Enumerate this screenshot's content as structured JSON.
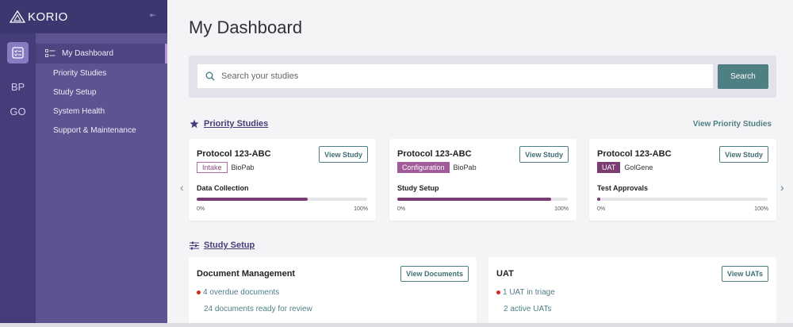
{
  "app": {
    "brand": "KORIO",
    "collapse_glyph": "⇤"
  },
  "rail": {
    "items": [
      "BP",
      "GO"
    ]
  },
  "sidebar": {
    "items": [
      {
        "label": "My Dashboard",
        "active": true
      },
      {
        "label": "Priority Studies"
      },
      {
        "label": "Study Setup"
      },
      {
        "label": "System Health"
      },
      {
        "label": "Support & Maintenance"
      }
    ]
  },
  "page": {
    "title": "My Dashboard"
  },
  "search": {
    "placeholder": "Search your studies",
    "button_label": "Search"
  },
  "priority": {
    "title": "Priority Studies",
    "view_all_label": "View Priority Studies",
    "cards": [
      {
        "protocol": "Protocol 123-ABC",
        "button": "View Study",
        "tag": "Intake",
        "org": "BioPab",
        "phase": "Data Collection",
        "progress": 0.65,
        "min_label": "0%",
        "max_label": "100%"
      },
      {
        "protocol": "Protocol 123-ABC",
        "button": "View Study",
        "tag": "Configuration",
        "org": "BioPab",
        "phase": "Study Setup",
        "progress": 0.9,
        "min_label": "0%",
        "max_label": "100%"
      },
      {
        "protocol": "Protocol 123-ABC",
        "button": "View Study",
        "tag": "UAT",
        "org": "GolGene",
        "phase": "Test Approvals",
        "progress": 0.01,
        "min_label": "0%",
        "max_label": "100%"
      }
    ]
  },
  "setup": {
    "title": "Study Setup",
    "panels": [
      {
        "title": "Document Management",
        "button": "View Documents",
        "alert": "4 overdue documents",
        "info": "24 documents ready for review"
      },
      {
        "title": "UAT",
        "button": "View UATs",
        "alert": "1 UAT in triage",
        "info": "2 active UATs"
      }
    ]
  },
  "colors": {
    "sidebar": "#5c5390",
    "accent": "#4e7f83",
    "progress": "#7a3c72",
    "alert": "#d6281e"
  }
}
